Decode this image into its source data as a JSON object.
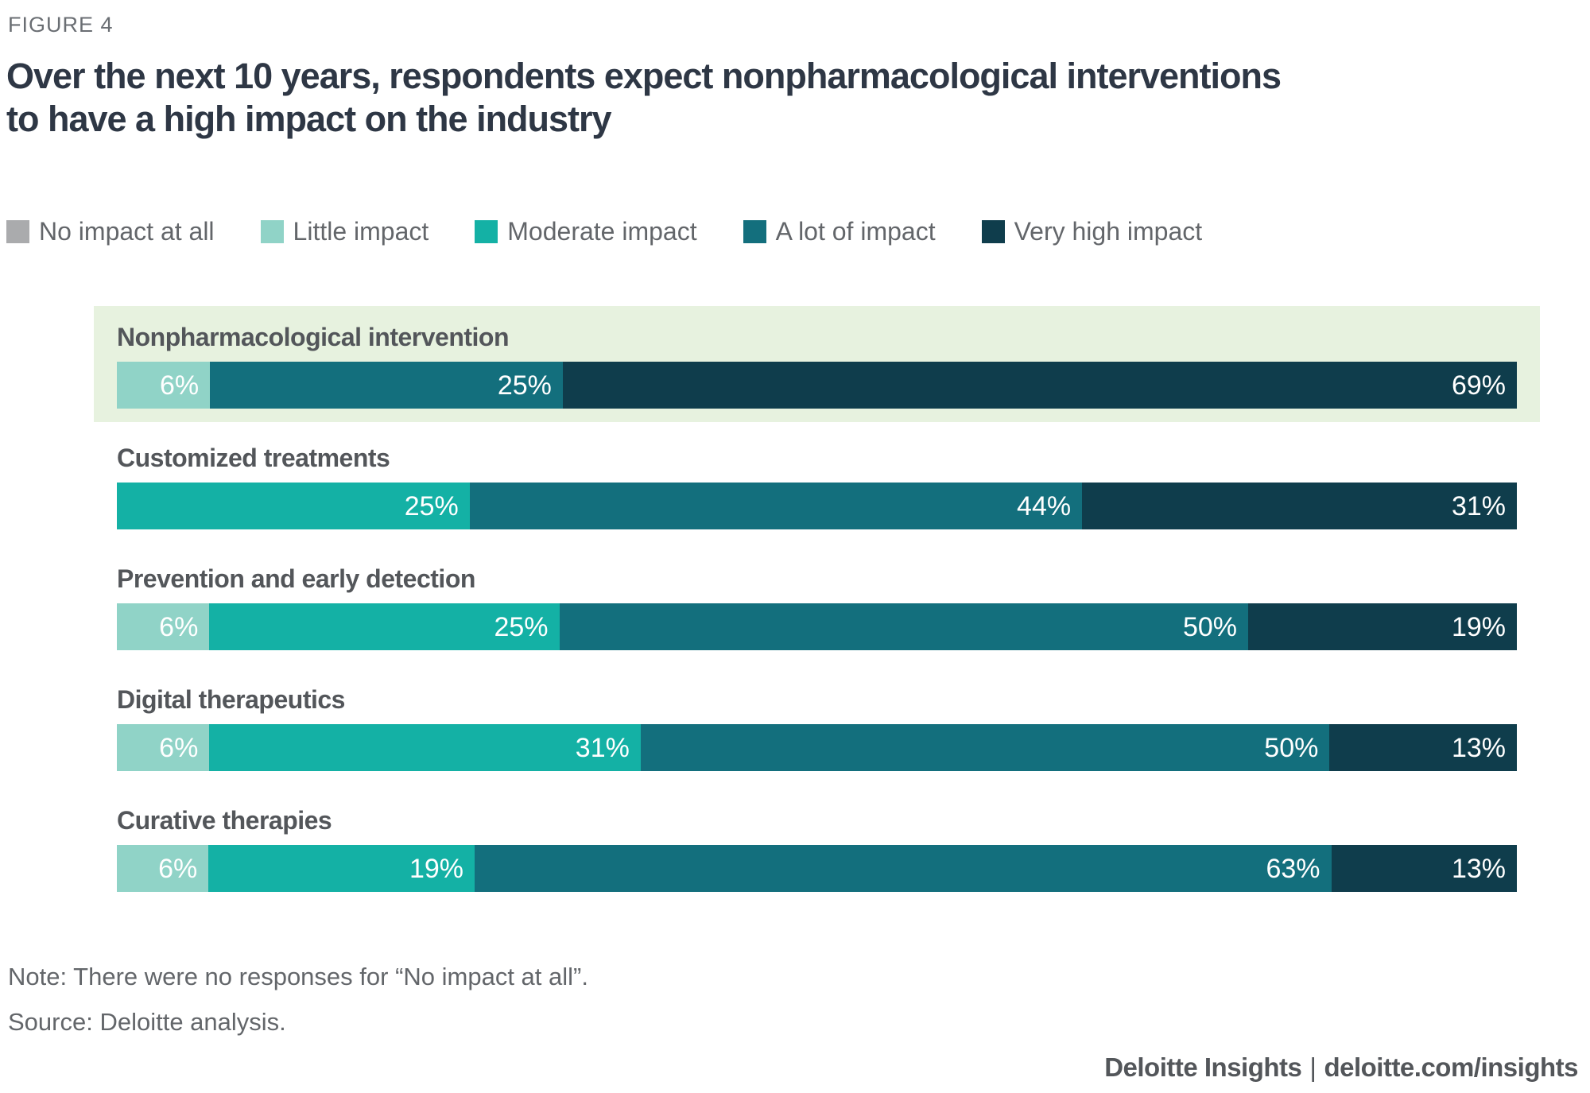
{
  "figure_label": "FIGURE 4",
  "header": {
    "title_line1": "Over the next 10 years, respondents expect nonpharmacological interventions",
    "title_line2": "to have a high impact on the industry"
  },
  "legend": [
    {
      "label": "No impact at all",
      "color": "#aaabad"
    },
    {
      "label": "Little impact",
      "color": "#90d3c7"
    },
    {
      "label": "Moderate impact",
      "color": "#14b1a5"
    },
    {
      "label": "A lot of impact",
      "color": "#136f7d"
    },
    {
      "label": "Very high impact",
      "color": "#0f3d4c"
    }
  ],
  "chart_data": {
    "type": "bar",
    "orientation": "horizontal",
    "stacked": true,
    "unit": "%",
    "title": "Over the next 10 years, respondents expect nonpharmacological interventions to have a high impact on the industry",
    "categories": [
      "Nonpharmacological intervention",
      "Customized treatments",
      "Prevention and early detection",
      "Digital therapeutics",
      "Curative therapies"
    ],
    "series": [
      {
        "name": "No impact at all",
        "values": [
          0,
          0,
          0,
          0,
          0
        ]
      },
      {
        "name": "Little impact",
        "values": [
          6,
          0,
          6,
          6,
          6
        ]
      },
      {
        "name": "Moderate impact",
        "values": [
          0,
          25,
          25,
          31,
          19
        ]
      },
      {
        "name": "A lot of impact",
        "values": [
          25,
          44,
          50,
          50,
          63
        ]
      },
      {
        "name": "Very high impact",
        "values": [
          69,
          31,
          19,
          13,
          13
        ]
      }
    ],
    "highlighted_category": "Nonpharmacological intervention",
    "highlight_color": "#e7f2df",
    "xlim": [
      0,
      100
    ],
    "grid": false,
    "legend_position": "top"
  },
  "note": "Note: There were no responses for “No impact at all”.",
  "source": "Source: Deloitte analysis.",
  "footer": {
    "brand": "Deloitte Insights",
    "separator": "|",
    "url": "deloitte.com/insights"
  }
}
